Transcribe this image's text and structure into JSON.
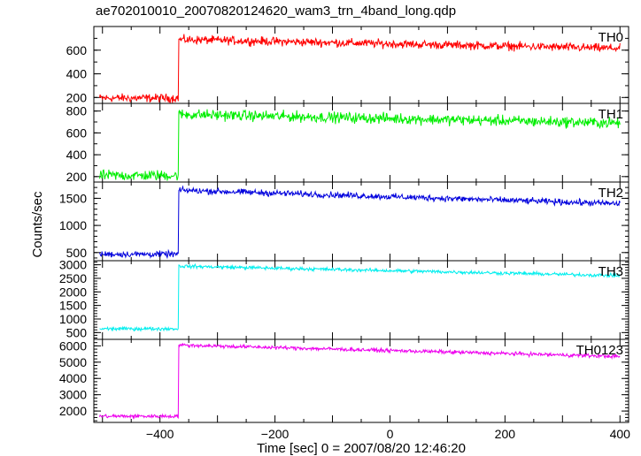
{
  "chart_data": {
    "type": "line",
    "title": "ae702010010_20070820124620_wam3_trn_4band_long.qdp",
    "xlabel": "Time [sec] 0 = 2007/08/20 12:46:20",
    "ylabel": "Counts/sec",
    "xlim": [
      -515,
      415
    ],
    "xticks": [
      -400,
      -200,
      0,
      200,
      400
    ],
    "xtick_labels": [
      "−400",
      "−200",
      "0",
      "200",
      "400"
    ],
    "x_start": -505,
    "x_end": 400,
    "step_x": -368,
    "grid": false,
    "panels": [
      {
        "name": "TH0",
        "color": "#ff0000",
        "ylim": [
          150,
          800
        ],
        "yticks": [
          200,
          400,
          600
        ],
        "yticks_minor_step": 100,
        "pre_level": 195,
        "post_start": 690,
        "post_end": 615,
        "noise": 22
      },
      {
        "name": "TH1",
        "color": "#00ee00",
        "ylim": [
          150,
          870
        ],
        "yticks": [
          200,
          400,
          600,
          800
        ],
        "yticks_minor_step": 100,
        "pre_level": 210,
        "post_start": 770,
        "post_end": 690,
        "noise": 30
      },
      {
        "name": "TH2",
        "color": "#0000dd",
        "ylim": [
          350,
          1800
        ],
        "yticks": [
          500,
          1000,
          1500
        ],
        "yticks_minor_step": 100,
        "pre_level": 470,
        "post_start": 1650,
        "post_end": 1400,
        "noise": 35
      },
      {
        "name": "TH3",
        "color": "#00eeee",
        "ylim": [
          250,
          3150
        ],
        "yticks": [
          500,
          1000,
          1500,
          2000,
          2500,
          3000
        ],
        "yticks_minor_step": 100,
        "pre_level": 640,
        "post_start": 2950,
        "post_end": 2600,
        "noise": 40
      },
      {
        "name": "TH0123",
        "color": "#ee00ee",
        "ylim": [
          1300,
          6400
        ],
        "yticks": [
          2000,
          3000,
          4000,
          5000,
          6000
        ],
        "yticks_minor_step": 200,
        "pre_level": 1680,
        "post_start": 6050,
        "post_end": 5350,
        "noise": 70
      }
    ]
  }
}
